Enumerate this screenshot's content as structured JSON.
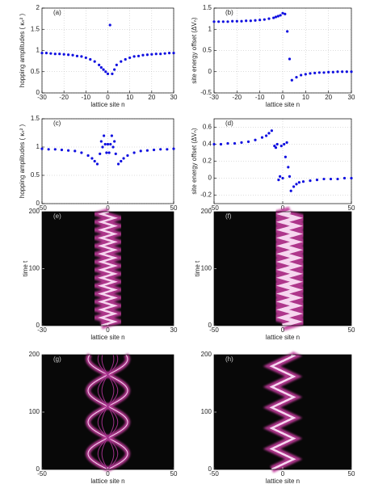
{
  "chart_data": [
    {
      "type": "scatter",
      "panel_label": "(a)",
      "xlabel": "lattice site n",
      "ylabel": "hopping amplitudes ( κₙ² )",
      "color": "#1010e0",
      "grid": true,
      "xlim": [
        -30,
        30
      ],
      "xticks": [
        -30,
        -20,
        -10,
        0,
        10,
        20,
        30
      ],
      "ylim": [
        0,
        2
      ],
      "yticks": [
        0,
        0.5,
        1,
        1.5,
        2
      ],
      "x": [
        -30,
        -28,
        -26,
        -24,
        -22,
        -20,
        -18,
        -16,
        -14,
        -12,
        -10,
        -8,
        -6,
        -4,
        -3,
        -2,
        -1,
        0,
        1,
        2,
        3,
        4,
        6,
        8,
        10,
        12,
        14,
        16,
        18,
        20,
        22,
        24,
        26,
        28,
        30
      ],
      "values": [
        0.94,
        0.94,
        0.93,
        0.92,
        0.92,
        0.91,
        0.9,
        0.89,
        0.87,
        0.86,
        0.83,
        0.79,
        0.74,
        0.66,
        0.6,
        0.55,
        0.5,
        0.45,
        1.6,
        0.45,
        0.55,
        0.66,
        0.74,
        0.79,
        0.83,
        0.86,
        0.87,
        0.89,
        0.9,
        0.91,
        0.92,
        0.92,
        0.93,
        0.94,
        0.94
      ]
    },
    {
      "type": "scatter",
      "panel_label": "(b)",
      "xlabel": "lattice site n",
      "ylabel": "site energy offset (ΔVₙ)",
      "color": "#1010e0",
      "grid": true,
      "xlim": [
        -30,
        30
      ],
      "xticks": [
        -30,
        -20,
        -10,
        0,
        10,
        20,
        30
      ],
      "ylim": [
        -0.5,
        1.5
      ],
      "yticks": [
        -0.5,
        0,
        0.5,
        1,
        1.5
      ],
      "x": [
        -30,
        -28,
        -26,
        -24,
        -22,
        -20,
        -18,
        -16,
        -14,
        -12,
        -10,
        -8,
        -6,
        -4,
        -3,
        -2,
        -1,
        0,
        1,
        2,
        3,
        4,
        6,
        8,
        10,
        12,
        14,
        16,
        18,
        20,
        22,
        24,
        26,
        28,
        30
      ],
      "values": [
        1.18,
        1.18,
        1.18,
        1.18,
        1.19,
        1.19,
        1.19,
        1.2,
        1.2,
        1.21,
        1.22,
        1.23,
        1.25,
        1.27,
        1.29,
        1.31,
        1.33,
        1.38,
        1.36,
        0.95,
        0.3,
        -0.2,
        -0.13,
        -0.08,
        -0.06,
        -0.04,
        -0.03,
        -0.02,
        -0.02,
        -0.01,
        -0.01,
        0,
        0,
        0,
        0
      ]
    },
    {
      "type": "scatter",
      "panel_label": "(c)",
      "xlabel": "lattice site n",
      "ylabel": "hopping amplitudes ( κₙ² )",
      "color": "#1010e0",
      "grid": true,
      "xlim": [
        -50,
        50
      ],
      "xticks": [
        -50,
        0,
        50
      ],
      "ylim": [
        0,
        1.5
      ],
      "yticks": [
        0,
        0.5,
        1,
        1.5
      ],
      "x": [
        -50,
        -45,
        -40,
        -35,
        -30,
        -25,
        -20,
        -15,
        -12,
        -10,
        -8,
        -6,
        -5,
        -4,
        -3,
        -2,
        -1,
        0,
        1,
        2,
        3,
        4,
        5,
        6,
        8,
        10,
        12,
        15,
        20,
        25,
        30,
        35,
        40,
        45,
        50
      ],
      "values": [
        0.97,
        0.96,
        0.96,
        0.95,
        0.94,
        0.93,
        0.9,
        0.85,
        0.8,
        0.75,
        0.7,
        0.88,
        1.1,
        1.0,
        1.2,
        1.05,
        0.9,
        1.05,
        0.9,
        1.05,
        1.2,
        1.0,
        1.1,
        0.88,
        0.7,
        0.75,
        0.8,
        0.85,
        0.9,
        0.93,
        0.94,
        0.95,
        0.96,
        0.96,
        0.97
      ]
    },
    {
      "type": "scatter",
      "panel_label": "(d)",
      "xlabel": "lattice site n",
      "ylabel": "site energy offset (ΔVₙ)",
      "color": "#1010e0",
      "grid": true,
      "xlim": [
        -50,
        50
      ],
      "xticks": [
        -50,
        0,
        50
      ],
      "ylim": [
        -0.3,
        0.7
      ],
      "yticks": [
        -0.2,
        0,
        0.2,
        0.4,
        0.6
      ],
      "x": [
        -50,
        -45,
        -40,
        -35,
        -30,
        -25,
        -20,
        -15,
        -12,
        -10,
        -8,
        -6,
        -5,
        -4,
        -3,
        -2,
        -1,
        0,
        1,
        2,
        3,
        4,
        5,
        6,
        8,
        10,
        12,
        15,
        20,
        25,
        30,
        35,
        40,
        45,
        50
      ],
      "values": [
        0.4,
        0.4,
        0.41,
        0.41,
        0.42,
        0.43,
        0.45,
        0.48,
        0.5,
        0.53,
        0.56,
        0.38,
        0.36,
        0.4,
        -0.02,
        0.02,
        0.38,
        0,
        0.4,
        0.25,
        0.42,
        0.13,
        0.02,
        -0.15,
        -0.1,
        -0.07,
        -0.05,
        -0.04,
        -0.03,
        -0.02,
        -0.01,
        -0.01,
        -0.01,
        0,
        0
      ]
    },
    {
      "type": "heatmap",
      "panel_label": "(e)",
      "xlabel": "lattice site n",
      "ylabel": "time t",
      "xlim": [
        -30,
        30
      ],
      "xticks": [
        -30,
        0,
        30
      ],
      "ylim": [
        0,
        200
      ],
      "yticks": [
        0,
        100,
        200
      ]
    },
    {
      "type": "heatmap",
      "panel_label": "(f)",
      "xlabel": "lattice site n",
      "ylabel": "time t",
      "xlim": [
        -50,
        50
      ],
      "xticks": [
        -50,
        0,
        50
      ],
      "ylim": [
        0,
        200
      ],
      "yticks": [
        0,
        100,
        200
      ]
    },
    {
      "type": "heatmap",
      "panel_label": "(g)",
      "xlabel": "lattice site n",
      "xlim": [
        -50,
        50
      ],
      "xticks": [
        -50,
        0,
        50
      ],
      "ylim": [
        0,
        200
      ],
      "yticks": [
        0,
        100,
        200
      ]
    },
    {
      "type": "heatmap",
      "panel_label": "(h)",
      "xlabel": "lattice site n",
      "xlim": [
        -50,
        50
      ],
      "xticks": [
        -50,
        0,
        50
      ],
      "ylim": [
        0,
        200
      ],
      "yticks": [
        0,
        100,
        200
      ]
    }
  ]
}
